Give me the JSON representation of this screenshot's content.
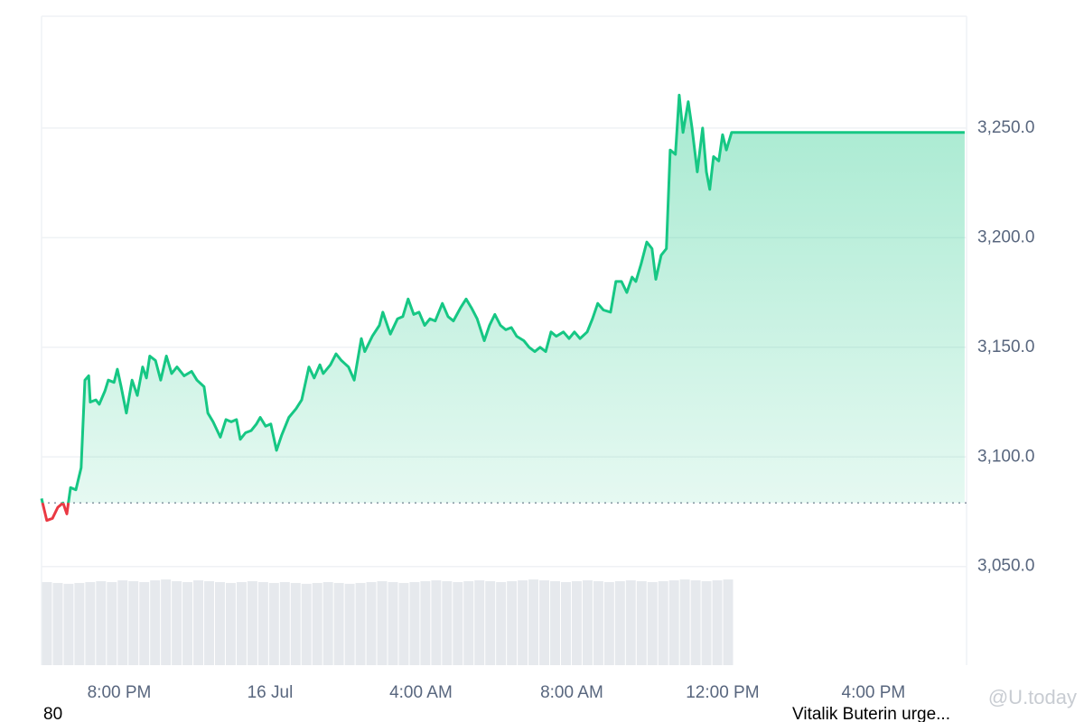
{
  "chart_data": {
    "type": "line",
    "x": [
      -6.06,
      -5.92,
      -5.77,
      -5.63,
      -5.49,
      -5.39,
      -5.29,
      -5.15,
      -5.01,
      -4.91,
      -4.81,
      -4.77,
      -4.62,
      -4.53,
      -4.38,
      -4.29,
      -4.14,
      -4.05,
      -3.95,
      -3.81,
      -3.66,
      -3.52,
      -3.38,
      -3.28,
      -3.19,
      -3.04,
      -2.9,
      -2.75,
      -2.61,
      -2.47,
      -2.28,
      -2.08,
      -1.94,
      -1.75,
      -1.65,
      -1.51,
      -1.32,
      -1.17,
      -1.03,
      -0.89,
      -0.79,
      -0.65,
      -0.5,
      -0.36,
      -0.26,
      -0.12,
      0.02,
      0.17,
      0.31,
      0.5,
      0.69,
      0.84,
      1.03,
      1.17,
      1.32,
      1.41,
      1.6,
      1.75,
      1.89,
      2.08,
      2.23,
      2.42,
      2.51,
      2.71,
      2.9,
      2.99,
      3.19,
      3.38,
      3.52,
      3.66,
      3.81,
      3.95,
      4.1,
      4.24,
      4.38,
      4.57,
      4.72,
      4.86,
      5.05,
      5.2,
      5.34,
      5.49,
      5.68,
      5.82,
      5.96,
      6.11,
      6.25,
      6.4,
      6.54,
      6.73,
      6.87,
      7.02,
      7.16,
      7.31,
      7.45,
      7.59,
      7.78,
      7.93,
      8.07,
      8.22,
      8.41,
      8.55,
      8.69,
      8.84,
      9.03,
      9.17,
      9.32,
      9.46,
      9.6,
      9.7,
      9.84,
      9.99,
      10.13,
      10.23,
      10.37,
      10.51,
      10.61,
      10.75,
      10.85,
      10.95,
      11.09,
      11.19,
      11.33,
      11.47,
      11.57,
      11.66,
      11.76,
      11.9,
      12.0,
      12.1,
      12.24,
      18.42
    ],
    "values": [
      3081,
      3071,
      3072,
      3077,
      3079,
      3074,
      3086,
      3085,
      3095,
      3135,
      3137,
      3125,
      3126,
      3124,
      3130,
      3135,
      3134,
      3140,
      3132,
      3120,
      3135,
      3128,
      3141,
      3136,
      3146,
      3144,
      3135,
      3146,
      3138,
      3141,
      3137,
      3139,
      3135,
      3132,
      3120,
      3116,
      3109,
      3117,
      3116,
      3117,
      3108,
      3111,
      3112,
      3115,
      3118,
      3114,
      3115,
      3103,
      3110,
      3118,
      3122,
      3126,
      3141,
      3136,
      3142,
      3138,
      3142,
      3147,
      3144,
      3141,
      3135,
      3154,
      3148,
      3155,
      3160,
      3166,
      3156,
      3163,
      3164,
      3172,
      3165,
      3166,
      3160,
      3163,
      3162,
      3170,
      3164,
      3162,
      3168,
      3172,
      3168,
      3163,
      3153,
      3160,
      3165,
      3160,
      3158,
      3159,
      3155,
      3153,
      3150,
      3148,
      3150,
      3148,
      3157,
      3155,
      3157,
      3154,
      3157,
      3154,
      3157,
      3163,
      3170,
      3167,
      3166,
      3180,
      3180,
      3175,
      3182,
      3180,
      3188,
      3198,
      3195,
      3181,
      3192,
      3195,
      3240,
      3238,
      3265,
      3248,
      3262,
      3250,
      3230,
      3250,
      3230,
      3222,
      3237,
      3235,
      3247,
      3240,
      3248,
      3248
    ],
    "color": "#16c784",
    "down_color": "#ea3943",
    "baseline": 3079,
    "xlim": [
      -6.06,
      18.47
    ],
    "xticks": [
      {
        "value": -4,
        "label": "8:00 PM"
      },
      {
        "value": 0,
        "label": "16 Jul"
      },
      {
        "value": 4,
        "label": "4:00 AM"
      },
      {
        "value": 8,
        "label": "8:00 AM"
      },
      {
        "value": 12,
        "label": "12:00 PM"
      },
      {
        "value": 16,
        "label": "4:00 PM"
      }
    ],
    "ylim": [
      3005,
      3301
    ],
    "yticks": [
      {
        "value": 3050,
        "label": "3,050.0"
      },
      {
        "value": 3100,
        "label": "3,100.0"
      },
      {
        "value": 3150,
        "label": "3,150.0"
      },
      {
        "value": 3200,
        "label": "3,200.0"
      },
      {
        "value": 3250,
        "label": "3,250.0"
      }
    ],
    "grid": true,
    "volume": {
      "color": "#e6e9ed",
      "ylim": [
        0,
        750
      ],
      "values": [
        96,
        95,
        94,
        95,
        96,
        97,
        96,
        98,
        97,
        96,
        98,
        99,
        97,
        96,
        98,
        97,
        96,
        95,
        96,
        97,
        96,
        95,
        96,
        95,
        94,
        95,
        96,
        95,
        94,
        95,
        96,
        97,
        96,
        95,
        96,
        97,
        98,
        97,
        96,
        97,
        98,
        97,
        96,
        97,
        98,
        99,
        98,
        97,
        96,
        97,
        98,
        97,
        96,
        97,
        98,
        97,
        96,
        97,
        98,
        99,
        98,
        97,
        98,
        99
      ]
    },
    "annotations": [
      "80",
      "Vitalik Buterin urge...",
      "@U.today"
    ]
  }
}
